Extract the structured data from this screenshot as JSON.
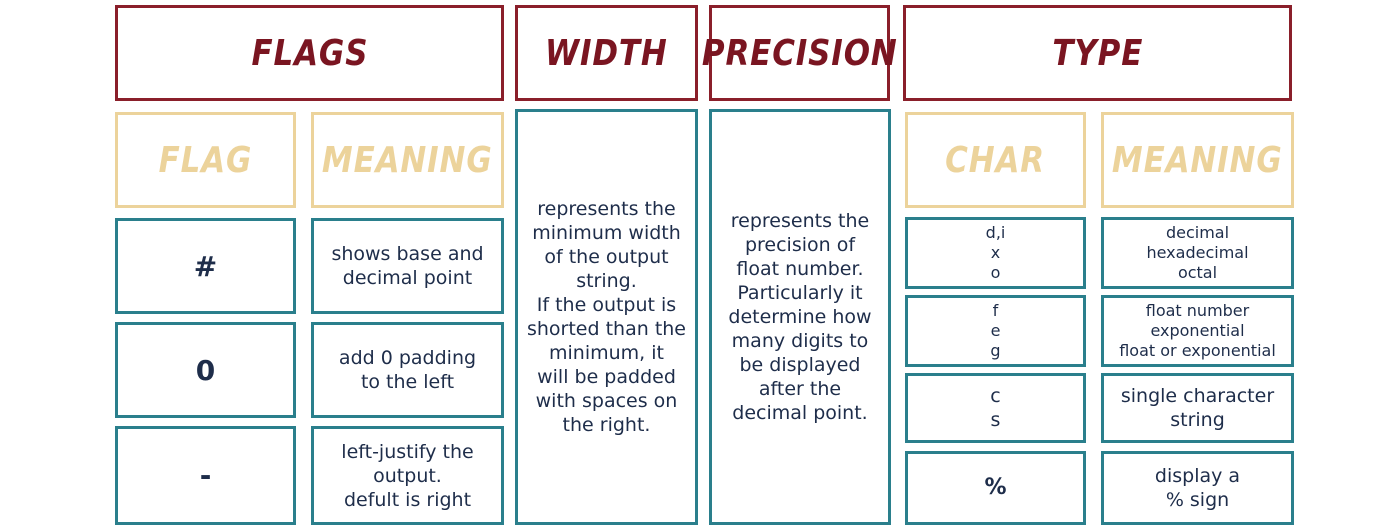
{
  "headers": {
    "flags": "FLAGS",
    "width": "WIDTH",
    "precision": "PRECISION",
    "type": "TYPE"
  },
  "subheaders": {
    "flag": "FLAG",
    "flag_meaning": "MEANING",
    "char": "CHAR",
    "type_meaning": "MEANING"
  },
  "flags": [
    {
      "flag": "#",
      "meaning": "shows base and\ndecimal point"
    },
    {
      "flag": "0",
      "meaning": "add 0 padding\nto the left"
    },
    {
      "flag": "-",
      "meaning": "left-justify the\noutput.\ndefult is right"
    }
  ],
  "width_text": "represents the\nminimum width\nof the output\nstring.\nIf the output is\nshorted than the\nminimum, it\nwill be padded\nwith spaces on\nthe right.",
  "precision_text": "represents the\nprecision of\nfloat number.\nParticularly it\ndetermine how\nmany digits to\nbe displayed\nafter the\ndecimal point.",
  "types": [
    {
      "char": "d,i\nx\no",
      "meaning": "decimal\nhexadecimal\noctal"
    },
    {
      "char": "f\ne\ng",
      "meaning": "float number\nexponential\nfloat or exponential"
    },
    {
      "char": "c\ns",
      "meaning": "single character\nstring"
    },
    {
      "char": "%",
      "meaning": "display a\n% sign"
    }
  ],
  "colors": {
    "header_border": "#8a1f2a",
    "subheader": "#ecd39b",
    "cell_border": "#2a7f8c",
    "text": "#1e2d4a"
  }
}
